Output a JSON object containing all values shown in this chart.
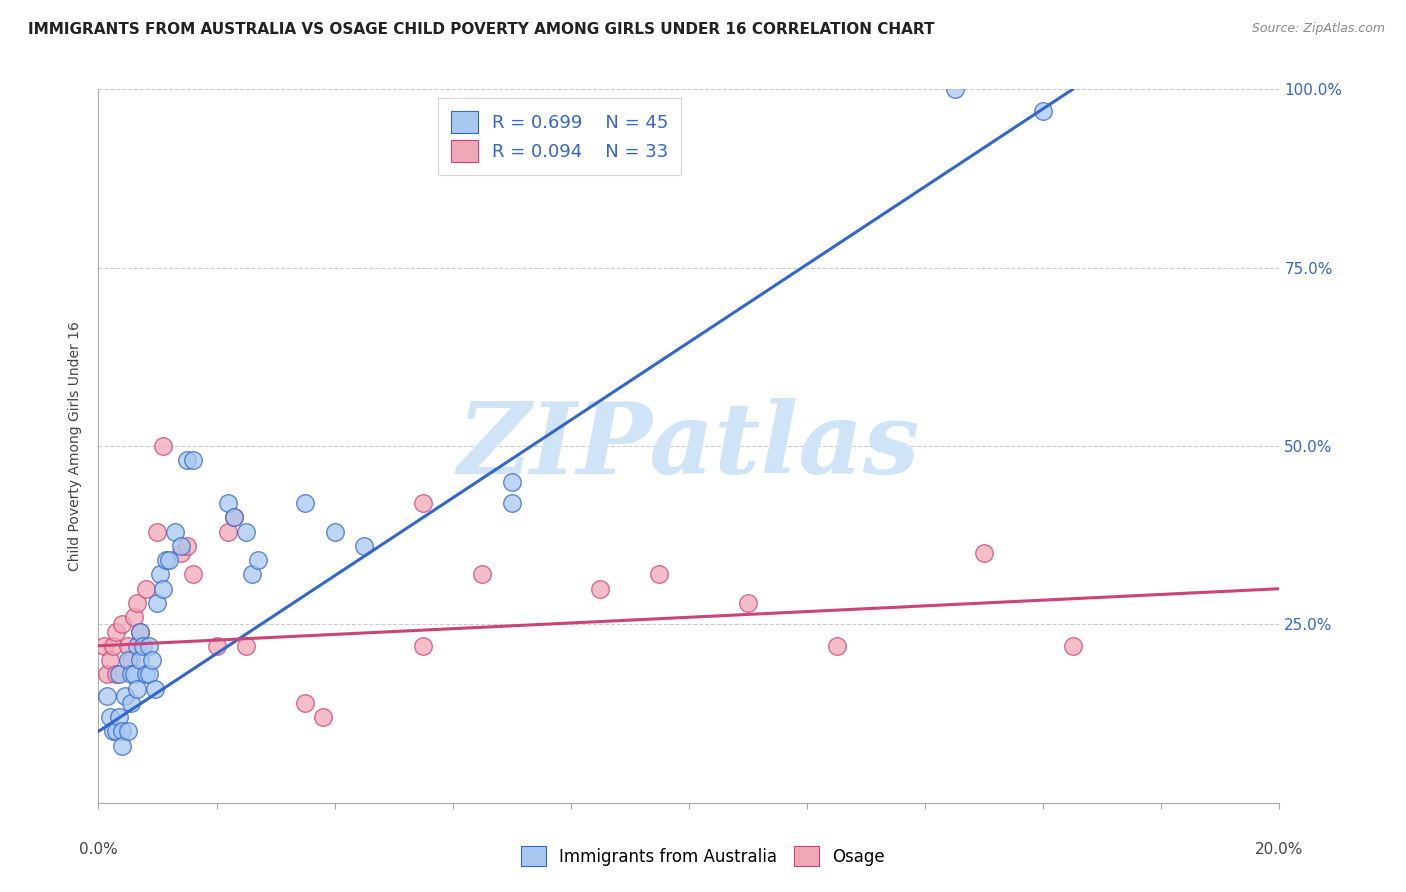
{
  "title": "IMMIGRANTS FROM AUSTRALIA VS OSAGE CHILD POVERTY AMONG GIRLS UNDER 16 CORRELATION CHART",
  "source": "Source: ZipAtlas.com",
  "ylabel": "Child Poverty Among Girls Under 16",
  "xlim": [
    0.0,
    20.0
  ],
  "ylim": [
    0.0,
    100.0
  ],
  "legend_r1": "R = 0.699",
  "legend_n1": "N = 45",
  "legend_r2": "R = 0.094",
  "legend_n2": "N = 33",
  "color_blue": "#a8c8f0",
  "color_pink": "#f0a8b8",
  "line_color_blue": "#3366cc",
  "line_color_pink": "#cc4477",
  "watermark": "ZIPatlas",
  "watermark_color": "#d0e4f8",
  "title_fontsize": 11,
  "blue_scatter_x": [
    0.15,
    0.2,
    0.25,
    0.3,
    0.35,
    0.35,
    0.4,
    0.4,
    0.45,
    0.5,
    0.5,
    0.55,
    0.55,
    0.6,
    0.65,
    0.65,
    0.7,
    0.7,
    0.75,
    0.8,
    0.85,
    0.85,
    0.9,
    0.95,
    1.0,
    1.05,
    1.1,
    1.15,
    1.2,
    1.3,
    1.4,
    1.5,
    1.6,
    2.2,
    2.3,
    2.5,
    2.6,
    2.7,
    3.5,
    4.0,
    4.5,
    7.0,
    7.0,
    14.5,
    16.0
  ],
  "blue_scatter_y": [
    15,
    12,
    10,
    10,
    18,
    12,
    10,
    8,
    15,
    20,
    10,
    18,
    14,
    18,
    22,
    16,
    24,
    20,
    22,
    18,
    22,
    18,
    20,
    16,
    28,
    32,
    30,
    34,
    34,
    38,
    36,
    48,
    48,
    42,
    40,
    38,
    32,
    34,
    42,
    38,
    36,
    45,
    42,
    100,
    97
  ],
  "pink_scatter_x": [
    0.1,
    0.15,
    0.2,
    0.25,
    0.3,
    0.3,
    0.4,
    0.5,
    0.55,
    0.6,
    0.65,
    0.7,
    0.8,
    1.0,
    1.1,
    1.4,
    1.5,
    1.6,
    2.0,
    2.2,
    2.3,
    2.5,
    3.5,
    3.8,
    5.5,
    5.5,
    6.5,
    8.5,
    9.5,
    11.0,
    12.5,
    15.0,
    16.5
  ],
  "pink_scatter_y": [
    22,
    18,
    20,
    22,
    24,
    18,
    25,
    22,
    20,
    26,
    28,
    24,
    30,
    38,
    50,
    35,
    36,
    32,
    22,
    38,
    40,
    22,
    14,
    12,
    22,
    42,
    32,
    30,
    32,
    28,
    22,
    35,
    22
  ],
  "blue_line_x": [
    0.0,
    16.5
  ],
  "blue_line_y": [
    10.0,
    100.0
  ],
  "pink_line_x": [
    0.0,
    20.0
  ],
  "pink_line_y": [
    22.0,
    30.0
  ]
}
